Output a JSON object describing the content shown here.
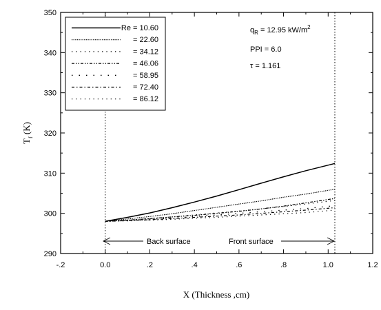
{
  "chart_data": {
    "type": "line",
    "xlabel": "X (Thickness ,cm)",
    "ylabel": {
      "main": "T",
      "sub": "f",
      "unit": " (K)"
    },
    "xlim": [
      -0.2,
      1.2
    ],
    "ylim": [
      290,
      350
    ],
    "xticks": [
      -0.2,
      0.0,
      0.2,
      0.4,
      0.6,
      0.8,
      1.0,
      1.2
    ],
    "xtick_labels": [
      "-.2",
      "0.0",
      ".2",
      ".4",
      ".6",
      ".8",
      "1.0",
      "1.2"
    ],
    "yticks": [
      290,
      300,
      310,
      320,
      330,
      340,
      350
    ],
    "ytick_labels": [
      "290",
      "300",
      "310",
      "320",
      "330",
      "340",
      "350"
    ],
    "grid": false,
    "legend_position": "top-left",
    "x": [
      0.0,
      0.1,
      0.2,
      0.3,
      0.4,
      0.5,
      0.6,
      0.7,
      0.8,
      0.9,
      1.03
    ],
    "series": [
      {
        "name": "Re = 10.60",
        "style": "solid",
        "values": [
          298.0,
          299.0,
          300.1,
          301.4,
          302.8,
          304.3,
          305.9,
          307.5,
          309.1,
          310.6,
          312.4
        ]
      },
      {
        "name": "= 22.60",
        "style": "dense-dot",
        "values": [
          298.0,
          298.6,
          299.2,
          299.9,
          300.7,
          301.5,
          302.3,
          303.1,
          304.0,
          304.8,
          306.0
        ]
      },
      {
        "name": "= 34.12",
        "style": "sparse-dot",
        "values": [
          298.0,
          298.3,
          298.7,
          299.1,
          299.6,
          300.1,
          300.6,
          301.1,
          301.7,
          302.3,
          303.2
        ]
      },
      {
        "name": "= 46.06",
        "style": "dash-dot-dot",
        "values": [
          298.0,
          298.3,
          298.7,
          299.1,
          299.5,
          300.0,
          300.5,
          301.1,
          301.8,
          302.6,
          303.7
        ]
      },
      {
        "name": "= 58.95",
        "style": "wide-dot",
        "values": [
          298.0,
          298.2,
          298.5,
          298.8,
          299.2,
          299.6,
          300.0,
          300.4,
          300.8,
          301.2,
          301.9
        ]
      },
      {
        "name": "= 72.40",
        "style": "dash-dot",
        "values": [
          298.0,
          298.2,
          298.4,
          298.7,
          299.0,
          299.3,
          299.6,
          300.0,
          300.4,
          300.8,
          301.4
        ]
      },
      {
        "name": "= 86.12",
        "style": "sparse-dot",
        "values": [
          298.0,
          298.1,
          298.3,
          298.5,
          298.8,
          299.0,
          299.3,
          299.6,
          299.9,
          300.2,
          300.8
        ]
      }
    ],
    "vertical_lines": [
      0.0,
      1.03
    ],
    "annotations": {
      "qr": {
        "main": "q",
        "sub": "R",
        "value": " = 12.95 kW/m",
        "sup": "2"
      },
      "ppi": "PPI = 6.0",
      "tau": "τ = 1.161",
      "back_surface": "Back surface",
      "front_surface": "Front surface"
    }
  }
}
